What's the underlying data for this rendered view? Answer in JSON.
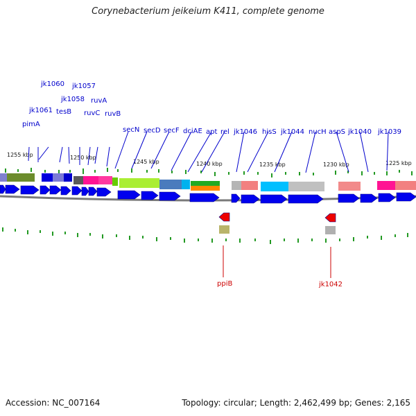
{
  "title": "Corynebacterium jeikeium K411, complete genome",
  "footer": {
    "accession": "Accession: NC_007164",
    "summary": "Topology: circular; Length: 2,462,499 bp; Genes: 2,165"
  },
  "colors": {
    "forward_arrow": "#0000ee",
    "label_top": "#0000cc",
    "label_bottom": "#cc0000",
    "backbone": "#777777",
    "tick": "#229922"
  },
  "scale_labels": [
    "1255 kbp",
    "1250 kbp",
    "1245 kbp",
    "1240 kbp",
    "1235 kbp",
    "1230 kbp",
    "1225 kbp"
  ],
  "top_genes": [
    "jk1060",
    "jk1057",
    "jk1058",
    "ruvA",
    "jk1061",
    "tesB",
    "ruvC",
    "ruvB",
    "pimA",
    "secN",
    "secD",
    "secF",
    "dciAE",
    "apt",
    "rel",
    "jk1046",
    "hisS",
    "jk1044",
    "nucH",
    "aspS",
    "jk1040",
    "jk1039"
  ],
  "bottom_genes": [
    "ppiB",
    "jk1042"
  ]
}
